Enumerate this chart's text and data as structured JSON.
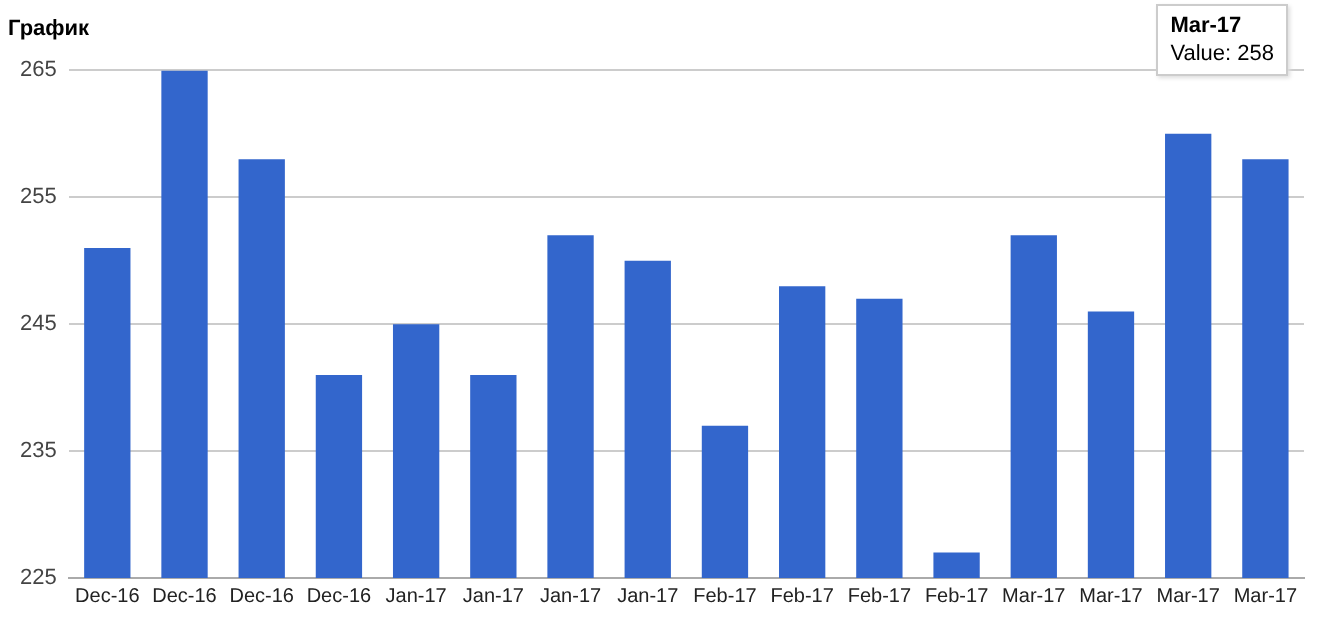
{
  "chart_data": {
    "type": "bar",
    "title": "График",
    "categories": [
      "Dec-16",
      "Dec-16",
      "Dec-16",
      "Dec-16",
      "Jan-17",
      "Jan-17",
      "Jan-17",
      "Jan-17",
      "Feb-17",
      "Feb-17",
      "Feb-17",
      "Feb-17",
      "Mar-17",
      "Mar-17",
      "Mar-17",
      "Mar-17"
    ],
    "values": [
      251,
      265,
      258,
      241,
      245,
      241,
      252,
      250,
      237,
      248,
      247,
      227,
      252,
      246,
      260,
      258
    ],
    "color": "#3366cc",
    "ylim": [
      225,
      265
    ],
    "yticks": [
      225,
      235,
      245,
      255,
      265
    ],
    "grid": "y",
    "annotations": [
      "Mar-17",
      "Value: 258"
    ]
  }
}
